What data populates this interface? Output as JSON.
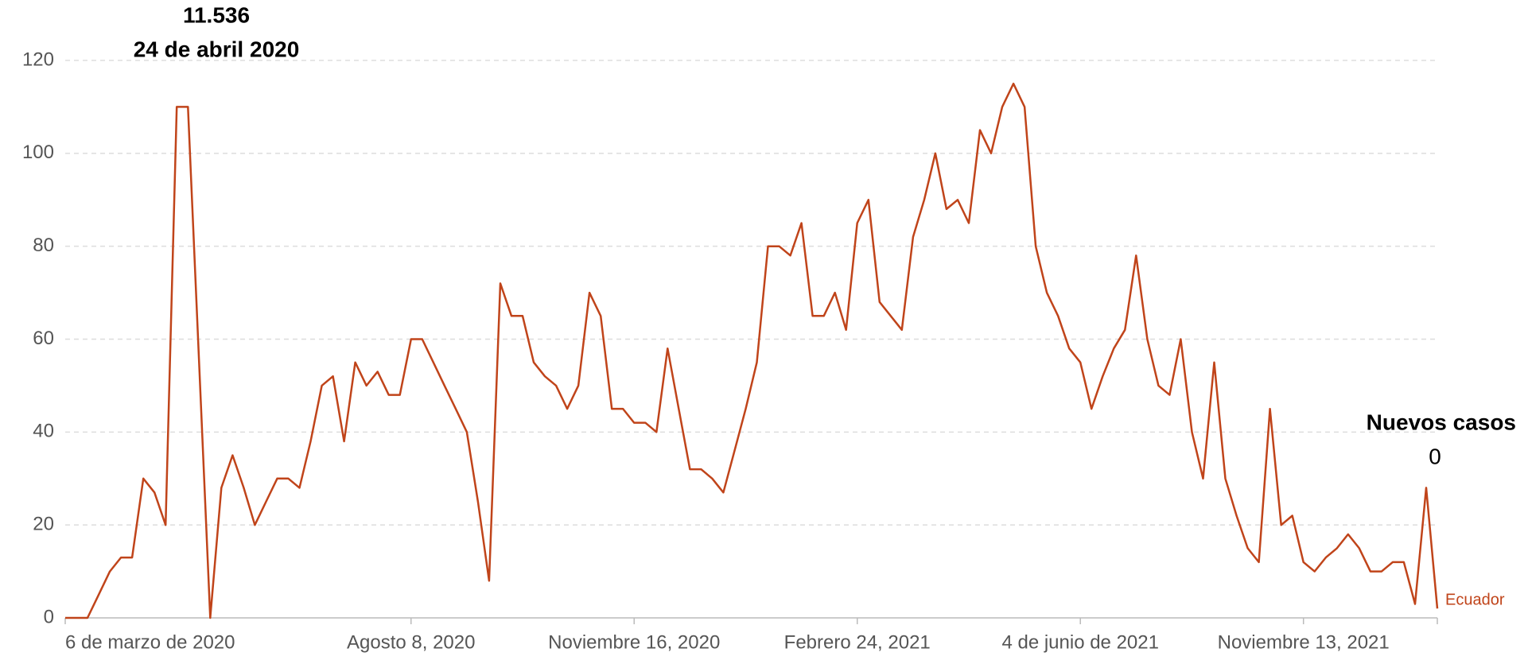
{
  "chart_data": {
    "type": "line",
    "annotations": [
      "11.536",
      "24 de abril 2020",
      "Nuevos casos",
      "0"
    ],
    "categories": [
      "6 de marzo de 2020",
      null,
      null,
      null,
      null,
      null,
      null,
      null,
      null,
      null,
      null,
      null,
      null,
      null,
      null,
      null,
      null,
      null,
      null,
      null,
      null,
      null,
      null,
      null,
      null,
      null,
      null,
      null,
      null,
      null,
      null,
      "Agosto 8, 2020",
      null,
      null,
      null,
      null,
      null,
      null,
      null,
      null,
      null,
      null,
      null,
      null,
      null,
      null,
      null,
      null,
      null,
      null,
      null,
      "Noviembre 16, 2020",
      null,
      null,
      null,
      null,
      null,
      null,
      null,
      null,
      null,
      null,
      null,
      null,
      null,
      null,
      null,
      null,
      null,
      null,
      null,
      "Febrero 24, 2021",
      null,
      null,
      null,
      null,
      null,
      null,
      null,
      null,
      null,
      null,
      null,
      null,
      null,
      null,
      null,
      null,
      null,
      null,
      null,
      "4 de junio de 2021",
      null,
      null,
      null,
      null,
      null,
      null,
      null,
      null,
      null,
      null,
      null,
      null,
      null,
      null,
      null,
      null,
      null,
      null,
      null,
      "Noviembre 13, 2021",
      null,
      null,
      null,
      null,
      null,
      null,
      null,
      null,
      null,
      null,
      null,
      null
    ],
    "series": [
      {
        "name": "Ecuador",
        "color": "#c0441a",
        "values": [
          0,
          0,
          0,
          5,
          10,
          13,
          13,
          30,
          27,
          20,
          110,
          110,
          55,
          0,
          28,
          35,
          28,
          20,
          25,
          30,
          30,
          28,
          38,
          50,
          52,
          38,
          55,
          50,
          53,
          48,
          48,
          60,
          60,
          55,
          50,
          45,
          40,
          25,
          8,
          72,
          65,
          65,
          55,
          52,
          50,
          45,
          50,
          70,
          65,
          45,
          45,
          42,
          42,
          40,
          58,
          45,
          32,
          32,
          30,
          27,
          36,
          45,
          55,
          80,
          80,
          78,
          85,
          65,
          65,
          70,
          62,
          85,
          90,
          68,
          65,
          62,
          82,
          90,
          100,
          88,
          90,
          85,
          105,
          100,
          110,
          115,
          110,
          80,
          70,
          65,
          58,
          55,
          45,
          52,
          58,
          62,
          78,
          60,
          50,
          48,
          60,
          40,
          30,
          55,
          30,
          22,
          15,
          12,
          45,
          20,
          22,
          12,
          10,
          13,
          15,
          18,
          15,
          10,
          10,
          12,
          12,
          3,
          28,
          2
        ]
      }
    ],
    "ylim": [
      0,
      125
    ],
    "yticks": [
      0,
      20,
      40,
      60,
      80,
      100,
      120
    ],
    "grid": true
  }
}
